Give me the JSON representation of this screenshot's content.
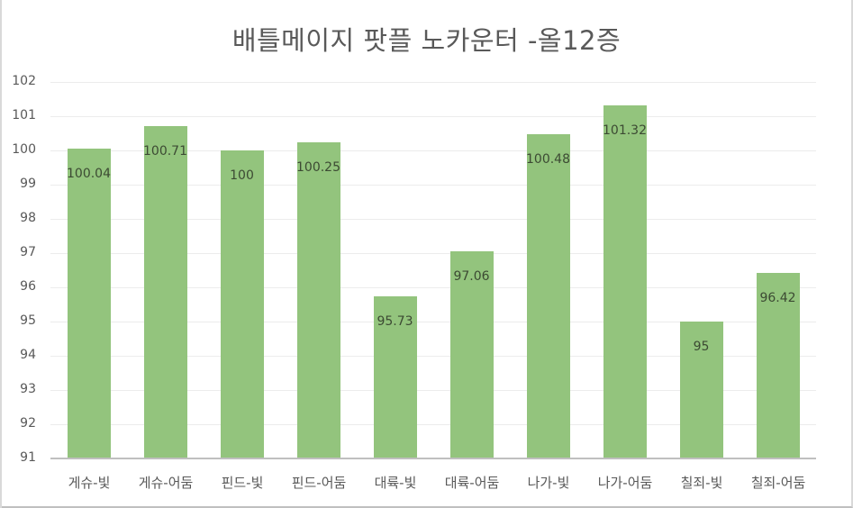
{
  "chart_data": {
    "type": "bar",
    "title": "배틀메이지 팟플 노카운터 -올12증",
    "xlabel": "",
    "ylabel": "",
    "ylim": [
      91,
      102
    ],
    "yticks": [
      91,
      92,
      93,
      94,
      95,
      96,
      97,
      98,
      99,
      100,
      101,
      102
    ],
    "grid": true,
    "legend": null,
    "bar_color": "#93c47d",
    "categories": [
      "게슈-빛",
      "게슈-어둠",
      "핀드-빛",
      "핀드-어둠",
      "대륙-빛",
      "대륙-어둠",
      "나가-빛",
      "나가-어둠",
      "칠죄-빛",
      "칠죄-어둠"
    ],
    "values": [
      100.04,
      100.71,
      100,
      100.25,
      95.73,
      97.06,
      100.48,
      101.32,
      95,
      96.42
    ],
    "data_labels": [
      "100.04",
      "100.71",
      "100",
      "100.25",
      "95.73",
      "97.06",
      "100.48",
      "101.32",
      "95",
      "96.42"
    ]
  }
}
